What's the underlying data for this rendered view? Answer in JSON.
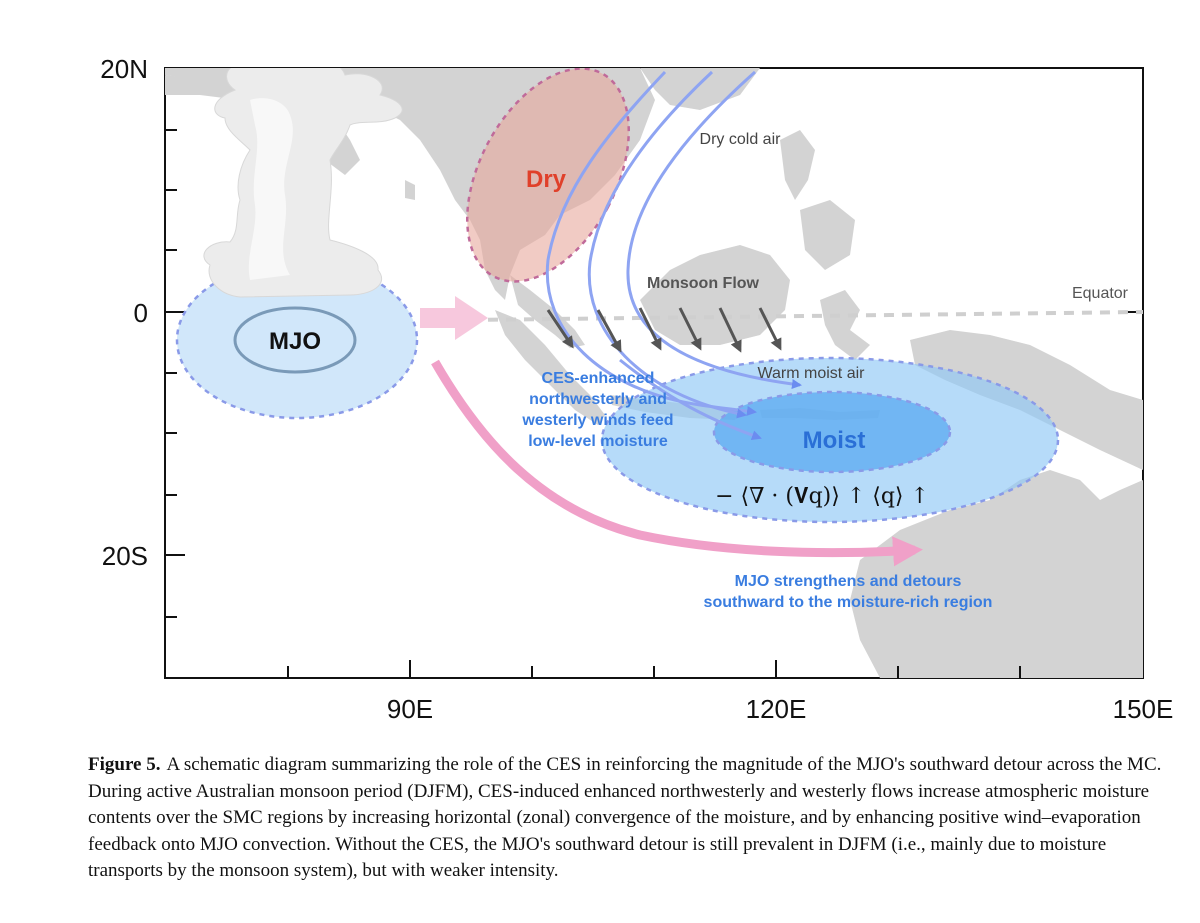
{
  "axes": {
    "y_ticks": [
      "20N",
      "0",
      "20S"
    ],
    "x_ticks": [
      "90E",
      "120E",
      "150E"
    ]
  },
  "labels": {
    "mjo": "MJO",
    "dry": "Dry",
    "dry_cold_air": "Dry cold air",
    "monsoon_flow": "Monsoon Flow",
    "equator": "Equator",
    "warm_moist_air": "Warm moist air",
    "ces_line1": "CES-enhanced",
    "ces_line2": "northwesterly and",
    "ces_line3": "westerly winds feed",
    "ces_line4": "low-level moisture",
    "moist": "Moist",
    "formula": "− ⟨∇ · (𝐕q)⟩ ↑  ⟨q⟩ ↑",
    "mjo_detour_line1": "MJO strengthens and detours",
    "mjo_detour_line2": "southward to the moisture-rich region"
  },
  "colors": {
    "land": "#d3d3d3",
    "mjo_blue": "#cce4fa",
    "moist_blue": "#6ab4f0",
    "dry_red": "#e8a89c",
    "pink_arrow": "#f0a0c8",
    "text_blue": "#3a7de0",
    "dry_text_red": "#e0402a"
  },
  "caption": {
    "label": "Figure 5.",
    "text": "A schematic diagram summarizing the role of the CES in reinforcing the magnitude of the MJO's southward detour across the MC. During active Australian monsoon period (DJFM), CES-induced enhanced northwesterly and westerly flows increase atmospheric moisture contents over the SMC regions by increasing horizontal (zonal) convergence of the moisture, and by enhancing positive wind–evaporation feedback onto MJO convection. Without the CES, the MJO's southward detour is still prevalent in DJFM (i.e., mainly due to moisture transports by the monsoon system), but with weaker intensity."
  }
}
